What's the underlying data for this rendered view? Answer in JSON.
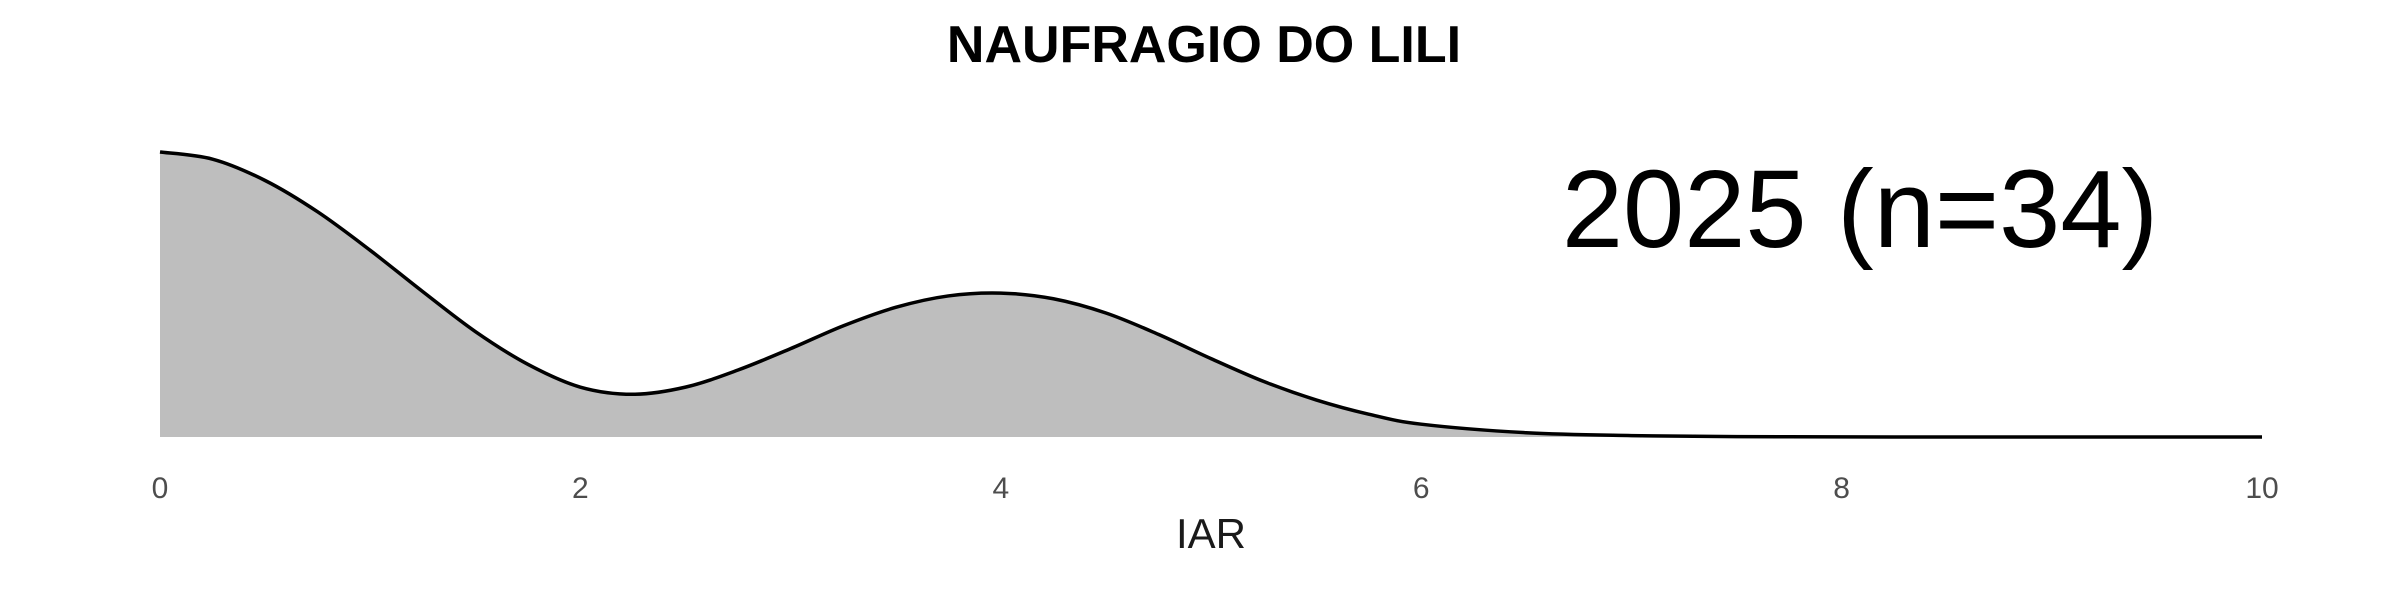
{
  "chart_data": {
    "type": "area",
    "title": "NAUFRAGIO DO LILI",
    "annotation": "2025 (n=34)",
    "xlabel": "IAR",
    "ylabel": "",
    "xlim": [
      0,
      10
    ],
    "ylim": [
      0,
      0.2
    ],
    "x_ticks": [
      0,
      2,
      4,
      6,
      8,
      10
    ],
    "x_tick_labels": [
      "0",
      "2",
      "4",
      "6",
      "8",
      "10"
    ],
    "grid": false,
    "legend": "none",
    "fill_color": "#bebebe",
    "line_color": "#000000",
    "x": [
      0,
      0.25,
      0.5,
      0.75,
      1.0,
      1.25,
      1.5,
      1.75,
      2.0,
      2.25,
      2.5,
      2.75,
      3.0,
      3.25,
      3.5,
      3.75,
      4.0,
      4.25,
      4.5,
      4.75,
      5.0,
      5.25,
      5.5,
      5.75,
      6.0,
      6.5,
      7.0,
      7.5,
      8.0,
      8.5,
      9.0,
      9.5,
      10.0
    ],
    "y": [
      0.2,
      0.195,
      0.18,
      0.158,
      0.131,
      0.102,
      0.074,
      0.051,
      0.035,
      0.03,
      0.035,
      0.047,
      0.062,
      0.078,
      0.091,
      0.099,
      0.101,
      0.097,
      0.087,
      0.072,
      0.055,
      0.039,
      0.026,
      0.016,
      0.009,
      0.003,
      0.001,
      0.0003,
      0.0001,
      0,
      0,
      0,
      0
    ]
  }
}
